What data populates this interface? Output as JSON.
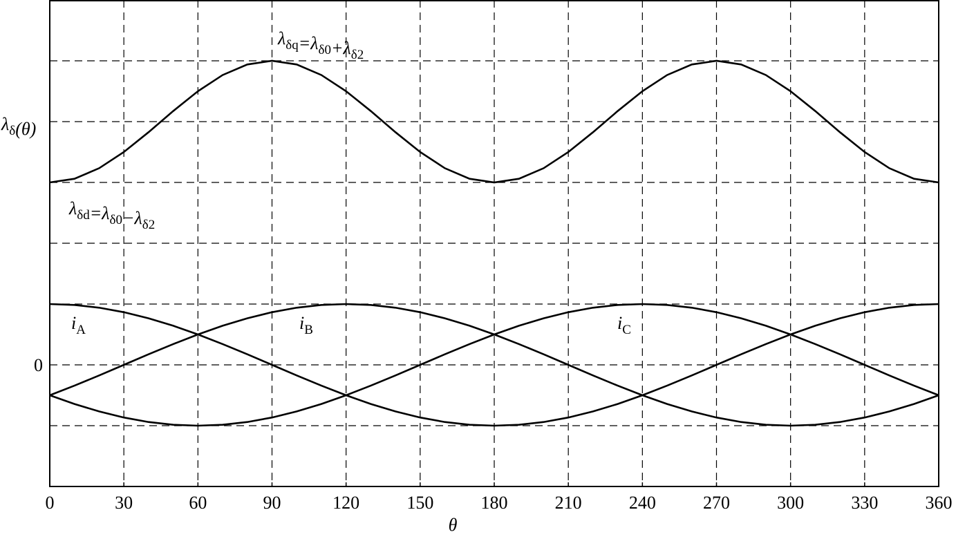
{
  "chart_data": {
    "type": "line",
    "x_label": "θ",
    "y_label_parts": [
      {
        "text": "λ",
        "sub": "δ"
      },
      {
        "text": "(θ)"
      }
    ],
    "x": [
      0,
      10,
      20,
      30,
      40,
      50,
      60,
      70,
      80,
      90,
      100,
      110,
      120,
      130,
      140,
      150,
      160,
      170,
      180,
      190,
      200,
      210,
      220,
      230,
      240,
      250,
      260,
      270,
      280,
      290,
      300,
      310,
      320,
      330,
      340,
      350,
      360
    ],
    "xlim": [
      0,
      360
    ],
    "xticks": [
      0,
      30,
      60,
      90,
      120,
      150,
      180,
      210,
      240,
      270,
      300,
      330,
      360
    ],
    "ylim": [
      -2,
      6
    ],
    "yticks": [
      0
    ],
    "ygrid": [
      -1,
      0,
      1,
      2,
      3,
      4,
      5
    ],
    "grid": true,
    "color": "#000000",
    "series": [
      {
        "values": [
          3,
          3.06,
          3.234,
          3.5,
          3.826,
          4.174,
          4.5,
          4.766,
          4.94,
          5,
          4.94,
          4.766,
          4.5,
          4.174,
          3.826,
          3.5,
          3.234,
          3.06,
          3,
          3.06,
          3.234,
          3.5,
          3.826,
          4.174,
          4.5,
          4.766,
          4.94,
          5,
          4.94,
          4.766,
          4.5,
          4.174,
          3.826,
          3.5,
          3.234,
          3.06,
          3
        ]
      },
      {
        "name": "iA",
        "values": [
          1,
          0.985,
          0.94,
          0.866,
          0.766,
          0.643,
          0.5,
          0.342,
          0.174,
          0,
          -0.174,
          -0.342,
          -0.5,
          -0.643,
          -0.766,
          -0.866,
          -0.94,
          -0.985,
          -1,
          -0.985,
          -0.94,
          -0.866,
          -0.766,
          -0.643,
          -0.5,
          -0.342,
          -0.174,
          0,
          0.174,
          0.342,
          0.5,
          0.643,
          0.766,
          0.866,
          0.94,
          0.985,
          1
        ]
      },
      {
        "name": "iB",
        "values": [
          -0.5,
          -0.342,
          -0.174,
          0,
          0.174,
          0.342,
          0.5,
          0.643,
          0.766,
          0.866,
          0.94,
          0.985,
          1,
          0.985,
          0.94,
          0.866,
          0.766,
          0.643,
          0.5,
          0.342,
          0.174,
          0,
          -0.174,
          -0.342,
          -0.5,
          -0.643,
          -0.766,
          -0.866,
          -0.94,
          -0.985,
          -1,
          -0.985,
          -0.94,
          -0.866,
          -0.766,
          -0.643,
          -0.5
        ]
      },
      {
        "name": "iC",
        "values": [
          -0.5,
          -0.643,
          -0.766,
          -0.866,
          -0.94,
          -0.985,
          -1,
          -0.985,
          -0.94,
          -0.866,
          -0.766,
          -0.643,
          -0.5,
          -0.342,
          -0.174,
          0,
          0.174,
          0.342,
          0.5,
          0.643,
          0.766,
          0.866,
          0.94,
          0.985,
          1,
          0.985,
          0.94,
          0.866,
          0.766,
          0.643,
          0.5,
          0.342,
          0.174,
          0,
          -0.174,
          -0.342,
          -0.5
        ]
      }
    ],
    "annotations": [
      {
        "parts": [
          {
            "text": "λ",
            "sub": "δq"
          },
          {
            "text": "=λ",
            "sub": "δ0"
          },
          {
            "text": "+λ",
            "sub": "δ2"
          }
        ]
      },
      {
        "parts": [
          {
            "text": "λ",
            "sub": "δd"
          },
          {
            "text": "=λ",
            "sub": "δ0"
          },
          {
            "text": "−λ",
            "sub": "δ2"
          }
        ]
      }
    ]
  }
}
